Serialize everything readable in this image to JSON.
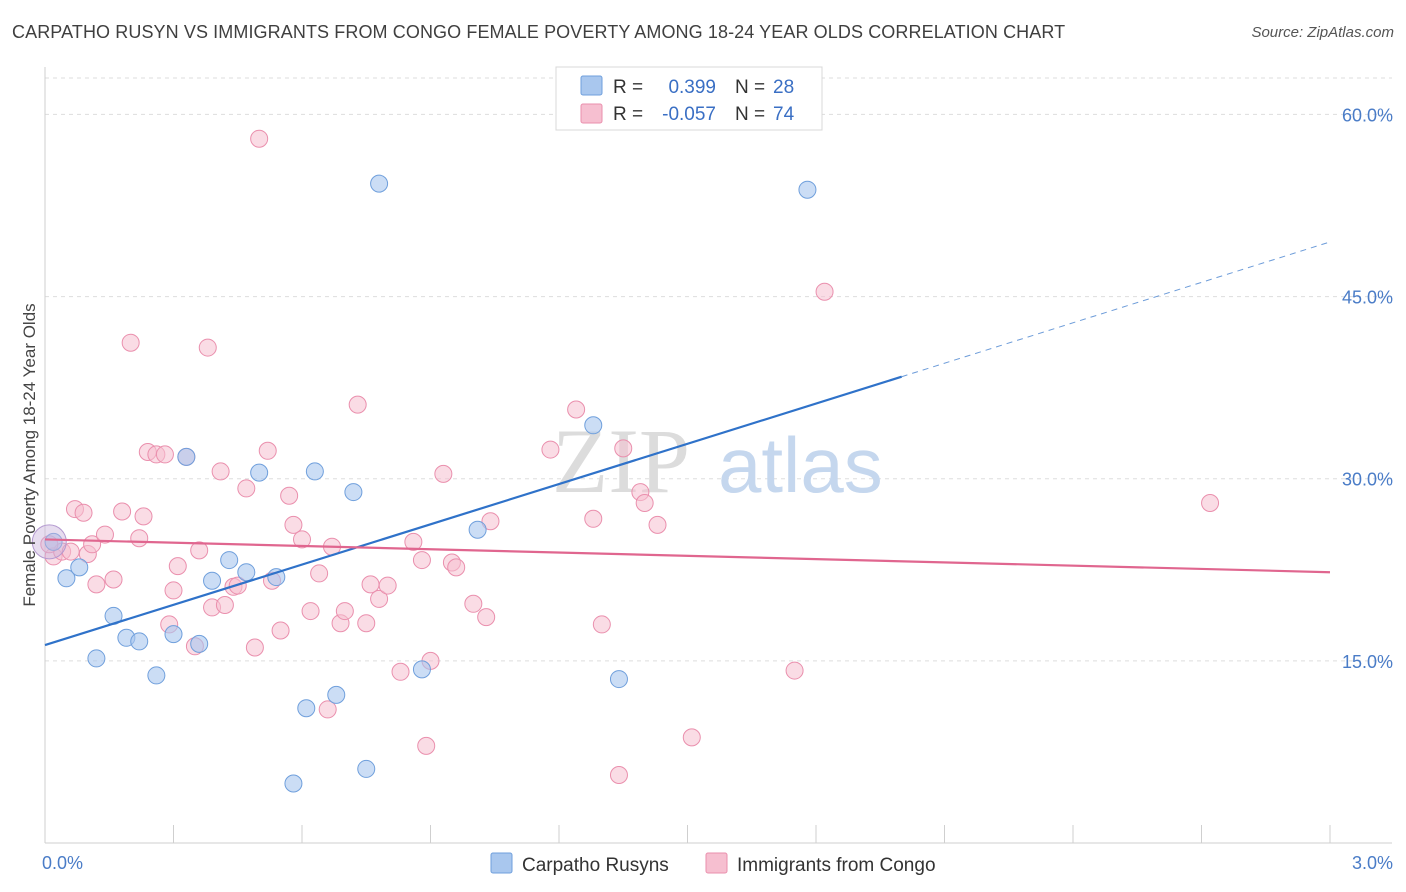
{
  "header": {
    "title": "CARPATHO RUSYN VS IMMIGRANTS FROM CONGO FEMALE POVERTY AMONG 18-24 YEAR OLDS CORRELATION CHART",
    "source": "Source: ZipAtlas.com"
  },
  "watermark": {
    "zip": "ZIP",
    "atlas": "atlas"
  },
  "colors": {
    "blue_fill": "#a9c7ee",
    "blue_stroke": "#6f9fdc",
    "blue_line": "#2f72c9",
    "pink_fill": "#f6bfd0",
    "pink_stroke": "#ea8fad",
    "pink_line": "#e0668f",
    "tick_text": "#4a7cc7",
    "grid": "#dddddd"
  },
  "legend": {
    "rows": [
      {
        "r_label": "R =",
        "r_value": "0.399",
        "n_label": "N =",
        "n_value": "28"
      },
      {
        "r_label": "R =",
        "r_value": "-0.057",
        "n_label": "N =",
        "n_value": "74"
      }
    ]
  },
  "chart_data": {
    "type": "scatter",
    "title": "CARPATHO RUSYN VS IMMIGRANTS FROM CONGO FEMALE POVERTY AMONG 18-24 YEAR OLDS CORRELATION CHART",
    "xlabel": "",
    "ylabel": "Female Poverty Among 18-24 Year Olds",
    "xlim": [
      0,
      3.0
    ],
    "ylim": [
      0,
      63
    ],
    "x_tick_labels": [
      "0.0%",
      "3.0%"
    ],
    "y_ticks": [
      15,
      30,
      45,
      60
    ],
    "y_tick_labels": [
      "15.0%",
      "30.0%",
      "45.0%",
      "60.0%"
    ],
    "grid": true,
    "legend_position": "top-center",
    "series": [
      {
        "name": "Carpatho Rusyns",
        "r": 0.399,
        "n": 28,
        "trend": {
          "x0": 0.0,
          "y0": 16.3,
          "x1": 2.0,
          "y1": 38.4,
          "dash_to_x": 3.0,
          "dash_to_y": 49.5
        },
        "points": [
          [
            0.02,
            24.8
          ],
          [
            0.05,
            21.8
          ],
          [
            0.08,
            22.7
          ],
          [
            0.12,
            15.2
          ],
          [
            0.16,
            18.7
          ],
          [
            0.19,
            16.9
          ],
          [
            0.22,
            16.6
          ],
          [
            0.26,
            13.8
          ],
          [
            0.3,
            17.2
          ],
          [
            0.33,
            31.8
          ],
          [
            0.36,
            16.4
          ],
          [
            0.39,
            21.6
          ],
          [
            0.43,
            23.3
          ],
          [
            0.47,
            22.3
          ],
          [
            0.5,
            30.5
          ],
          [
            0.54,
            21.9
          ],
          [
            0.58,
            4.9
          ],
          [
            0.61,
            11.1
          ],
          [
            0.63,
            30.6
          ],
          [
            0.68,
            12.2
          ],
          [
            0.72,
            28.9
          ],
          [
            0.75,
            6.1
          ],
          [
            0.78,
            54.3
          ],
          [
            0.88,
            14.3
          ],
          [
            1.01,
            25.8
          ],
          [
            1.28,
            34.4
          ],
          [
            1.34,
            13.5
          ],
          [
            1.78,
            53.8
          ]
        ]
      },
      {
        "name": "Immigrants from Congo",
        "r": -0.057,
        "n": 74,
        "trend": {
          "x0": 0.0,
          "y0": 25.0,
          "x1": 3.0,
          "y1": 22.3
        },
        "points": [
          [
            0.02,
            23.6
          ],
          [
            0.04,
            24.0
          ],
          [
            0.06,
            24.0
          ],
          [
            0.07,
            27.5
          ],
          [
            0.09,
            27.2
          ],
          [
            0.1,
            23.8
          ],
          [
            0.11,
            24.6
          ],
          [
            0.12,
            21.3
          ],
          [
            0.14,
            25.4
          ],
          [
            0.16,
            21.7
          ],
          [
            0.18,
            27.3
          ],
          [
            0.2,
            41.2
          ],
          [
            0.22,
            25.1
          ],
          [
            0.23,
            26.9
          ],
          [
            0.24,
            32.2
          ],
          [
            0.26,
            32.0
          ],
          [
            0.28,
            32.0
          ],
          [
            0.29,
            18.0
          ],
          [
            0.3,
            20.8
          ],
          [
            0.31,
            22.8
          ],
          [
            0.33,
            31.8
          ],
          [
            0.35,
            16.2
          ],
          [
            0.36,
            24.1
          ],
          [
            0.38,
            40.8
          ],
          [
            0.39,
            19.4
          ],
          [
            0.41,
            30.6
          ],
          [
            0.42,
            19.6
          ],
          [
            0.44,
            21.1
          ],
          [
            0.45,
            21.2
          ],
          [
            0.47,
            29.2
          ],
          [
            0.49,
            16.1
          ],
          [
            0.5,
            58.0
          ],
          [
            0.52,
            32.3
          ],
          [
            0.53,
            21.6
          ],
          [
            0.55,
            17.5
          ],
          [
            0.57,
            28.6
          ],
          [
            0.58,
            26.2
          ],
          [
            0.6,
            25.0
          ],
          [
            0.62,
            19.1
          ],
          [
            0.64,
            22.2
          ],
          [
            0.66,
            11.0
          ],
          [
            0.67,
            24.4
          ],
          [
            0.69,
            18.1
          ],
          [
            0.7,
            19.1
          ],
          [
            0.73,
            36.1
          ],
          [
            0.75,
            18.1
          ],
          [
            0.76,
            21.3
          ],
          [
            0.78,
            20.1
          ],
          [
            0.8,
            21.2
          ],
          [
            0.83,
            14.1
          ],
          [
            0.86,
            24.8
          ],
          [
            0.88,
            23.3
          ],
          [
            0.89,
            8.0
          ],
          [
            0.9,
            15.0
          ],
          [
            0.93,
            30.4
          ],
          [
            0.95,
            23.1
          ],
          [
            0.96,
            22.7
          ],
          [
            1.0,
            19.7
          ],
          [
            1.03,
            18.6
          ],
          [
            1.04,
            26.5
          ],
          [
            1.18,
            32.4
          ],
          [
            1.24,
            35.7
          ],
          [
            1.28,
            26.7
          ],
          [
            1.3,
            18.0
          ],
          [
            1.34,
            5.6
          ],
          [
            1.35,
            32.5
          ],
          [
            1.39,
            28.9
          ],
          [
            1.4,
            28.0
          ],
          [
            1.43,
            26.2
          ],
          [
            1.51,
            8.7
          ],
          [
            1.75,
            14.2
          ],
          [
            1.82,
            45.4
          ],
          [
            2.72,
            28.0
          ],
          [
            0.01,
            24.6
          ]
        ]
      }
    ]
  },
  "bottom_legend": {
    "items": [
      {
        "label": "Carpatho Rusyns"
      },
      {
        "label": "Immigrants from Congo"
      }
    ]
  }
}
